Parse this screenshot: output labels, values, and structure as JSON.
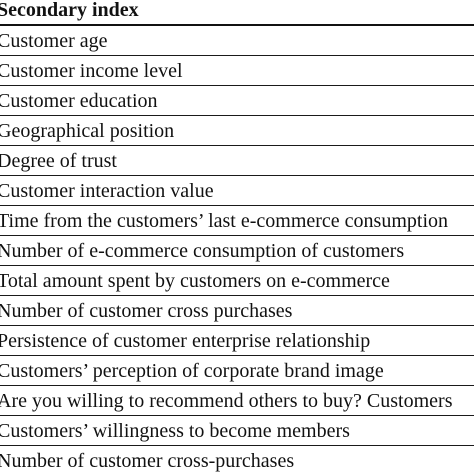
{
  "table": {
    "header": "Secondary index",
    "rows": [
      "Customer age",
      "Customer income level",
      "Customer education",
      "Geographical position",
      "Degree of trust",
      "Customer interaction value",
      "Time from the customers’ last e-commerce consumption",
      "Number of e-commerce consumption of customers",
      "Total amount spent by customers on e-commerce",
      "Number of customer cross purchases",
      "Persistence of customer enterprise relationship",
      "Customers’ perception of corporate brand image",
      "Are you willing to recommend others to buy? Customers",
      "Customers’ willingness to become members",
      "Number of customer cross-purchases"
    ]
  }
}
